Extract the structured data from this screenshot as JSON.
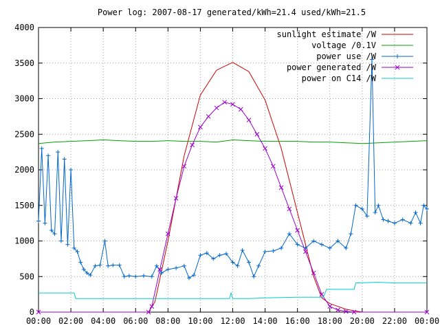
{
  "chart_data": {
    "type": "line",
    "title": "Power log: 2007-08-17 generated/kWh=21.4 used/kWh=21.5",
    "xlabel": "",
    "ylabel": "",
    "xlim": [
      0,
      24
    ],
    "ylim": [
      0,
      4000
    ],
    "grid": true,
    "legend_position": "top-right",
    "x_ticks": [
      "00:00",
      "02:00",
      "04:00",
      "06:00",
      "08:00",
      "10:00",
      "12:00",
      "14:00",
      "16:00",
      "18:00",
      "20:00",
      "22:00",
      "00:00"
    ],
    "y_ticks": [
      0,
      500,
      1000,
      1500,
      2000,
      2500,
      3000,
      3500,
      4000
    ],
    "series": [
      {
        "name": "sunlight estimate /W",
        "color": "#cc0000",
        "marker": "none",
        "points": [
          [
            0,
            0
          ],
          [
            6.8,
            0
          ],
          [
            7.2,
            150
          ],
          [
            8,
            1000
          ],
          [
            9,
            2200
          ],
          [
            10,
            3050
          ],
          [
            11,
            3400
          ],
          [
            12,
            3510
          ],
          [
            13,
            3380
          ],
          [
            14,
            2980
          ],
          [
            15,
            2300
          ],
          [
            16,
            1400
          ],
          [
            17,
            500
          ],
          [
            17.5,
            200
          ],
          [
            18,
            120
          ],
          [
            18.5,
            80
          ],
          [
            19,
            40
          ],
          [
            20,
            0
          ],
          [
            24,
            0
          ]
        ]
      },
      {
        "name": "voltage /0.1V",
        "color": "#00a000",
        "marker": "none",
        "points": [
          [
            0,
            2370
          ],
          [
            1,
            2390
          ],
          [
            2,
            2400
          ],
          [
            3,
            2410
          ],
          [
            4,
            2420
          ],
          [
            5,
            2410
          ],
          [
            6,
            2400
          ],
          [
            7,
            2400
          ],
          [
            8,
            2410
          ],
          [
            9,
            2400
          ],
          [
            10,
            2400
          ],
          [
            11,
            2390
          ],
          [
            12,
            2420
          ],
          [
            13,
            2410
          ],
          [
            14,
            2400
          ],
          [
            15,
            2400
          ],
          [
            16,
            2400
          ],
          [
            17,
            2390
          ],
          [
            18,
            2390
          ],
          [
            19,
            2380
          ],
          [
            20,
            2370
          ],
          [
            21,
            2380
          ],
          [
            22,
            2390
          ],
          [
            23,
            2400
          ],
          [
            24,
            2410
          ]
        ]
      },
      {
        "name": "power use /W",
        "color": "#0066cc",
        "marker": "plus",
        "points": [
          [
            0,
            1280
          ],
          [
            0.2,
            2300
          ],
          [
            0.4,
            1250
          ],
          [
            0.6,
            2200
          ],
          [
            0.8,
            1150
          ],
          [
            1,
            1100
          ],
          [
            1.2,
            2250
          ],
          [
            1.4,
            1000
          ],
          [
            1.6,
            2150
          ],
          [
            1.8,
            950
          ],
          [
            2,
            2000
          ],
          [
            2.2,
            900
          ],
          [
            2.4,
            850
          ],
          [
            2.6,
            700
          ],
          [
            2.8,
            600
          ],
          [
            3,
            550
          ],
          [
            3.2,
            520
          ],
          [
            3.5,
            650
          ],
          [
            3.8,
            660
          ],
          [
            4.1,
            1000
          ],
          [
            4.3,
            650
          ],
          [
            4.6,
            660
          ],
          [
            5,
            660
          ],
          [
            5.3,
            500
          ],
          [
            5.6,
            510
          ],
          [
            6,
            500
          ],
          [
            6.5,
            510
          ],
          [
            7,
            500
          ],
          [
            7.3,
            650
          ],
          [
            7.6,
            550
          ],
          [
            8,
            600
          ],
          [
            8.5,
            620
          ],
          [
            9,
            650
          ],
          [
            9.3,
            480
          ],
          [
            9.6,
            520
          ],
          [
            10,
            800
          ],
          [
            10.4,
            830
          ],
          [
            10.8,
            750
          ],
          [
            11.2,
            800
          ],
          [
            11.6,
            820
          ],
          [
            12,
            700
          ],
          [
            12.3,
            650
          ],
          [
            12.6,
            870
          ],
          [
            13,
            700
          ],
          [
            13.3,
            500
          ],
          [
            13.6,
            650
          ],
          [
            14,
            850
          ],
          [
            14.5,
            860
          ],
          [
            15,
            900
          ],
          [
            15.5,
            1100
          ],
          [
            16,
            950
          ],
          [
            16.5,
            900
          ],
          [
            17,
            1000
          ],
          [
            17.5,
            950
          ],
          [
            18,
            900
          ],
          [
            18.5,
            1000
          ],
          [
            19,
            900
          ],
          [
            19.3,
            1100
          ],
          [
            19.6,
            1500
          ],
          [
            20,
            1450
          ],
          [
            20.3,
            1350
          ],
          [
            20.6,
            3550
          ],
          [
            20.8,
            1400
          ],
          [
            21,
            1500
          ],
          [
            21.3,
            1300
          ],
          [
            21.6,
            1280
          ],
          [
            22,
            1250
          ],
          [
            22.5,
            1300
          ],
          [
            23,
            1250
          ],
          [
            23.3,
            1400
          ],
          [
            23.6,
            1250
          ],
          [
            23.8,
            1500
          ],
          [
            24,
            1450
          ]
        ]
      },
      {
        "name": "power generated /W",
        "color": "#9900cc",
        "marker": "x",
        "points": [
          [
            0,
            0
          ],
          [
            6.8,
            0
          ],
          [
            7,
            80
          ],
          [
            7.5,
            600
          ],
          [
            8,
            1100
          ],
          [
            8.5,
            1600
          ],
          [
            9,
            2050
          ],
          [
            9.5,
            2350
          ],
          [
            10,
            2600
          ],
          [
            10.5,
            2750
          ],
          [
            11,
            2870
          ],
          [
            11.5,
            2950
          ],
          [
            12,
            2920
          ],
          [
            12.5,
            2850
          ],
          [
            13,
            2700
          ],
          [
            13.5,
            2500
          ],
          [
            14,
            2300
          ],
          [
            14.5,
            2050
          ],
          [
            15,
            1750
          ],
          [
            15.5,
            1450
          ],
          [
            16,
            1150
          ],
          [
            16.5,
            850
          ],
          [
            17,
            550
          ],
          [
            17.5,
            250
          ],
          [
            18,
            80
          ],
          [
            18.5,
            30
          ],
          [
            19,
            10
          ],
          [
            19.5,
            0
          ],
          [
            24,
            0
          ]
        ]
      },
      {
        "name": "power on C14 /W",
        "color": "#00cccc",
        "marker": "none",
        "points": [
          [
            0,
            270
          ],
          [
            2.2,
            270
          ],
          [
            2.3,
            190
          ],
          [
            6,
            190
          ],
          [
            7,
            190
          ],
          [
            8,
            190
          ],
          [
            10,
            190
          ],
          [
            11,
            190
          ],
          [
            11.8,
            190
          ],
          [
            11.9,
            270
          ],
          [
            12,
            190
          ],
          [
            13,
            190
          ],
          [
            14,
            200
          ],
          [
            16,
            210
          ],
          [
            17,
            210
          ],
          [
            17.6,
            210
          ],
          [
            17.8,
            320
          ],
          [
            18.8,
            320
          ],
          [
            19,
            320
          ],
          [
            19.5,
            320
          ],
          [
            19.6,
            410
          ],
          [
            21,
            420
          ],
          [
            22,
            410
          ],
          [
            23,
            410
          ],
          [
            24,
            410
          ]
        ]
      }
    ]
  }
}
